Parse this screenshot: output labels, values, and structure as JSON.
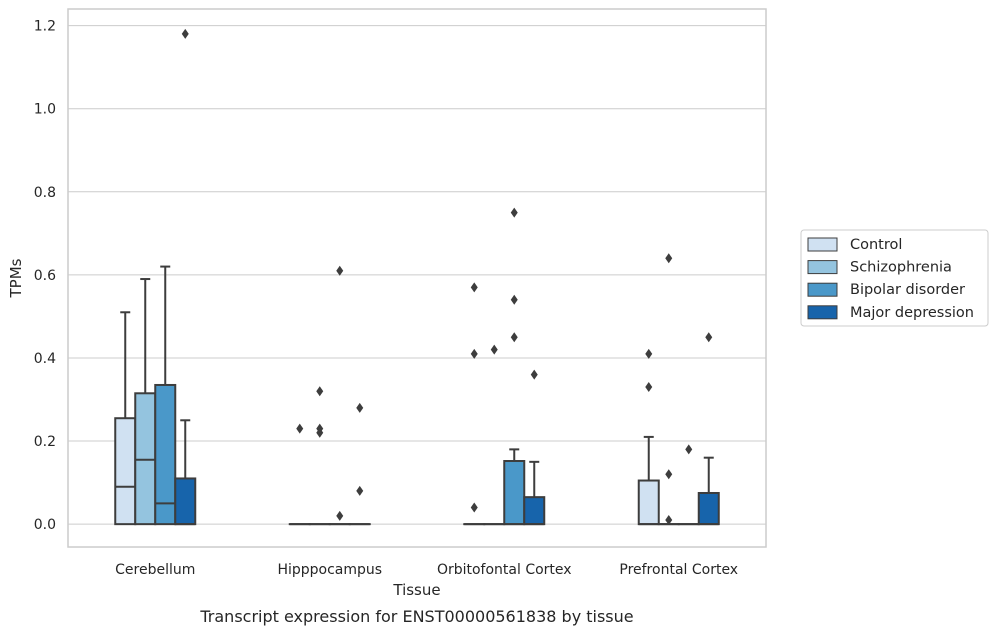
{
  "chart_data": {
    "type": "box",
    "xlabel": "Tissue",
    "ylabel": "TPMs",
    "caption": "Transcript expression for ENST00000561838 by tissue",
    "ylim": [
      -0.055,
      1.24
    ],
    "yticks": [
      0.0,
      0.2,
      0.4,
      0.6,
      0.8,
      1.0,
      1.2
    ],
    "ytick_labels": [
      "0.0",
      "0.2",
      "0.4",
      "0.6",
      "0.8",
      "1.0",
      "1.2"
    ],
    "grid": "horizontal",
    "legend_position": "right, outside plot",
    "categories": [
      "Cerebellum",
      "Hipppocampus",
      "Orbitofontal Cortex",
      "Prefrontal Cortex"
    ],
    "series": [
      {
        "name": "Control",
        "color": "#d0e1f2",
        "boxes": [
          {
            "min": 0.0,
            "q1": 0.0,
            "median": 0.09,
            "q3": 0.255,
            "max": 0.51,
            "outliers": []
          },
          {
            "min": 0.0,
            "q1": 0.0,
            "median": 0.0,
            "q3": 0.0,
            "max": 0.0,
            "outliers": [
              0.23
            ]
          },
          {
            "min": 0.0,
            "q1": 0.0,
            "median": 0.0,
            "q3": 0.0,
            "max": 0.0,
            "outliers": [
              0.57,
              0.41,
              0.04
            ]
          },
          {
            "min": 0.0,
            "q1": 0.0,
            "median": 0.0,
            "q3": 0.105,
            "max": 0.21,
            "outliers": [
              0.41,
              0.33
            ]
          }
        ]
      },
      {
        "name": "Schizophrenia",
        "color": "#94c4df",
        "boxes": [
          {
            "min": 0.0,
            "q1": 0.0,
            "median": 0.155,
            "q3": 0.315,
            "max": 0.59,
            "outliers": []
          },
          {
            "min": 0.0,
            "q1": 0.0,
            "median": 0.0,
            "q3": 0.0,
            "max": 0.0,
            "outliers": [
              0.32,
              0.23,
              0.22
            ]
          },
          {
            "min": 0.0,
            "q1": 0.0,
            "median": 0.0,
            "q3": 0.0,
            "max": 0.0,
            "outliers": [
              0.42
            ]
          },
          {
            "min": 0.0,
            "q1": 0.0,
            "median": 0.0,
            "q3": 0.0,
            "max": 0.0,
            "outliers": [
              0.64,
              0.12,
              0.01
            ]
          }
        ]
      },
      {
        "name": "Bipolar disorder",
        "color": "#4a98c9",
        "boxes": [
          {
            "min": 0.0,
            "q1": 0.0,
            "median": 0.05,
            "q3": 0.335,
            "max": 0.62,
            "outliers": []
          },
          {
            "min": 0.0,
            "q1": 0.0,
            "median": 0.0,
            "q3": 0.0,
            "max": 0.0,
            "outliers": [
              0.61,
              0.02
            ]
          },
          {
            "min": 0.0,
            "q1": 0.0,
            "median": 0.0,
            "q3": 0.152,
            "max": 0.18,
            "outliers": [
              0.75,
              0.54,
              0.45
            ]
          },
          {
            "min": 0.0,
            "q1": 0.0,
            "median": 0.0,
            "q3": 0.0,
            "max": 0.0,
            "outliers": [
              0.18
            ]
          }
        ]
      },
      {
        "name": "Major depression",
        "color": "#1764ab",
        "boxes": [
          {
            "min": 0.0,
            "q1": 0.0,
            "median": 0.0,
            "q3": 0.11,
            "max": 0.25,
            "outliers": [
              1.18
            ]
          },
          {
            "min": 0.0,
            "q1": 0.0,
            "median": 0.0,
            "q3": 0.0,
            "max": 0.0,
            "outliers": [
              0.28,
              0.08
            ]
          },
          {
            "min": 0.0,
            "q1": 0.0,
            "median": 0.0,
            "q3": 0.065,
            "max": 0.15,
            "outliers": [
              0.36
            ]
          },
          {
            "min": 0.0,
            "q1": 0.0,
            "median": 0.0,
            "q3": 0.075,
            "max": 0.16,
            "outliers": [
              0.45
            ]
          }
        ]
      }
    ]
  }
}
